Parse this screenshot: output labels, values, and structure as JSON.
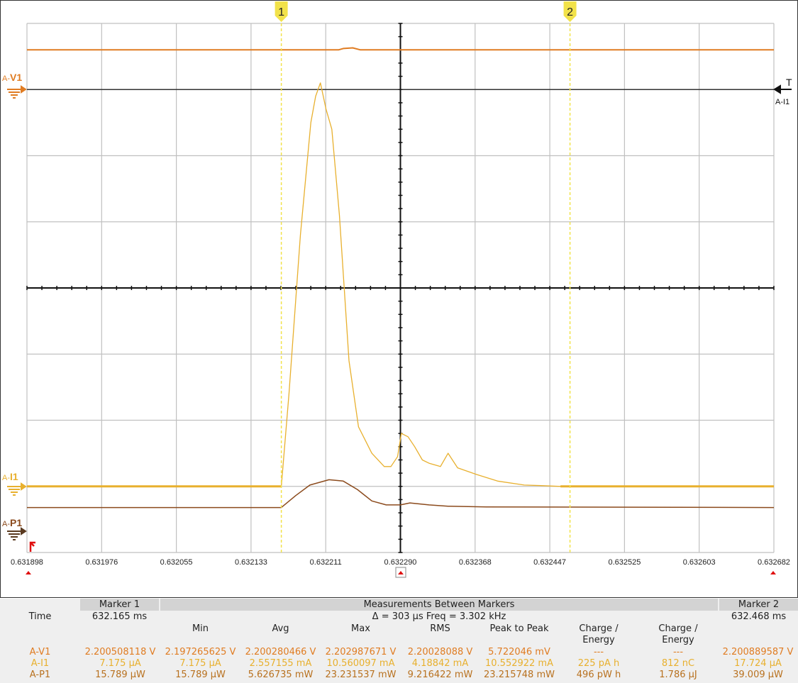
{
  "colors": {
    "v1": "#e07c22",
    "i1": "#e8b02e",
    "p1": "#8b4a1c",
    "grid": "#c0c0c0",
    "marker": "#f2e24a",
    "trigger": "#e01010"
  },
  "markers": [
    {
      "label": "1",
      "time_s": 0.632165
    },
    {
      "label": "2",
      "time_s": 0.632468
    }
  ],
  "channels": {
    "v1": {
      "prefix": "A-",
      "name": "V1"
    },
    "i1": {
      "prefix": "A-",
      "name": "I1"
    },
    "p1": {
      "prefix": "A-",
      "name": "P1"
    },
    "trigger": {
      "symbol": "T",
      "source": "A-I1"
    }
  },
  "chart_data": {
    "type": "line",
    "xlim": [
      0.631898,
      0.632682
    ],
    "x_ticks": [
      "0.631898",
      "0.631976",
      "0.632055",
      "0.632133",
      "0.632211",
      "0.632290",
      "0.632368",
      "0.632447",
      "0.632525",
      "0.632603",
      "0.632682"
    ],
    "grid": true,
    "y_divisions": 8,
    "series": [
      {
        "name": "A-V1",
        "x": [
          0.631898,
          0.632225,
          0.63223,
          0.63224,
          0.632248,
          0.632682
        ],
        "y": [
          7.6,
          7.6,
          7.62,
          7.63,
          7.6,
          7.6
        ]
      },
      {
        "name": "A-I1",
        "x": [
          0.631898,
          0.632165,
          0.632173,
          0.632185,
          0.632196,
          0.632201,
          0.632206,
          0.632212,
          0.632218,
          0.632226,
          0.632236,
          0.632246,
          0.63226,
          0.632273,
          0.63228,
          0.632287,
          0.632291,
          0.632298,
          0.632305,
          0.632313,
          0.63232,
          0.632332,
          0.63234,
          0.63235,
          0.63237,
          0.632392,
          0.63242,
          0.63244,
          0.632458,
          0.632682
        ],
        "y": [
          1.0,
          1.0,
          2.4,
          4.8,
          6.5,
          6.9,
          7.1,
          6.7,
          6.4,
          5.1,
          2.9,
          1.9,
          1.5,
          1.3,
          1.3,
          1.45,
          1.8,
          1.75,
          1.6,
          1.4,
          1.35,
          1.3,
          1.5,
          1.28,
          1.18,
          1.08,
          1.02,
          1.01,
          1.0,
          1.0
        ],
        "note_units": ""
      },
      {
        "name": "A-P1",
        "x": [
          0.631898,
          0.632165,
          0.63218,
          0.632195,
          0.632215,
          0.63223,
          0.632245,
          0.63226,
          0.632275,
          0.63229,
          0.6323,
          0.63232,
          0.63234,
          0.63238,
          0.632682
        ],
        "y": [
          0.68,
          0.68,
          0.86,
          1.02,
          1.1,
          1.08,
          0.95,
          0.78,
          0.72,
          0.72,
          0.75,
          0.72,
          0.7,
          0.69,
          0.68
        ]
      }
    ]
  },
  "table": {
    "marker1_header": "Marker 1",
    "marker2_header": "Marker 2",
    "between_header": "Measurements Between Markers",
    "time_label": "Time",
    "marker1_time": "632.165 ms",
    "marker2_time": "632.468 ms",
    "delta_text": "Δ = 303 μs   Freq = 3.302 kHz",
    "columns": [
      "Min",
      "Avg",
      "Max",
      "RMS",
      "Peak to Peak",
      "Charge /\nEnergy",
      "Charge /\nEnergy"
    ],
    "rows": [
      {
        "name": "A-V1",
        "m1": "2.200508118 V",
        "min": "2.197265625 V",
        "avg": "2.200280466 V",
        "max": "2.202987671 V",
        "rms": "2.20028088 V",
        "p2p": "5.722046 mV",
        "ce1": "---",
        "ce2": "---",
        "m2": "2.200889587 V"
      },
      {
        "name": "A-I1",
        "m1": "7.175 μA",
        "min": "7.175 μA",
        "avg": "2.557155 mA",
        "max": "10.560097 mA",
        "rms": "4.18842 mA",
        "p2p": "10.552922 mA",
        "ce1": "225 pA h",
        "ce2": "812 nC",
        "m2": "17.724 μA"
      },
      {
        "name": "A-P1",
        "m1": "15.789 μW",
        "min": "15.789 μW",
        "avg": "5.626735 mW",
        "max": "23.231537 mW",
        "rms": "9.216422 mW",
        "p2p": "23.215748 mW",
        "ce1": "496 pW h",
        "ce2": "1.786 μJ",
        "m2": "39.009 μW"
      }
    ]
  }
}
